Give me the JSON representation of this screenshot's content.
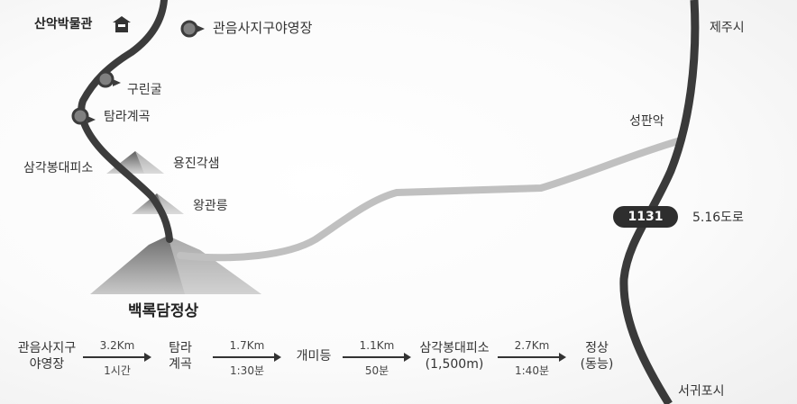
{
  "places": {
    "museum": "산악박물관",
    "campground_legend": "관음사지구야영장",
    "jeju_city": "제주시",
    "gurin_cave": "구린굴",
    "tamna_valley": "탐라계곡",
    "seongpanak": "성판악",
    "samgakbong_shelter": "삼각봉대피소",
    "yongjin_gaksaem": "용진각샘",
    "wanggwalleung": "왕관릉",
    "summit": "백록담정상",
    "seogwipo_city": "서귀포시"
  },
  "road": {
    "number": "1131",
    "name": "5.16도로"
  },
  "icons": {
    "museum": "home-icon",
    "campground": "trail-marker-icon",
    "waypoint": "trail-marker-icon",
    "peak": "mountain-icon"
  },
  "route": {
    "stops": [
      {
        "line1": "관음사지구",
        "line2": "야영장"
      },
      {
        "line1": "탐라",
        "line2": "계곡"
      },
      {
        "line1": "개미등",
        "line2": ""
      },
      {
        "line1": "삼각봉대피소",
        "line2": "(1,500m)"
      },
      {
        "line1": "정상",
        "line2": "(동능)"
      }
    ],
    "segments": [
      {
        "distance": "3.2Km",
        "time": "1시간"
      },
      {
        "distance": "1.7Km",
        "time": "1:30분"
      },
      {
        "distance": "1.1Km",
        "time": "50분"
      },
      {
        "distance": "2.7Km",
        "time": "1:40분"
      }
    ]
  },
  "colors": {
    "trail": "#3c3c3c",
    "connector_trail": "#bdbdbd",
    "road": "#3a3a3a",
    "marker": "#808080"
  }
}
